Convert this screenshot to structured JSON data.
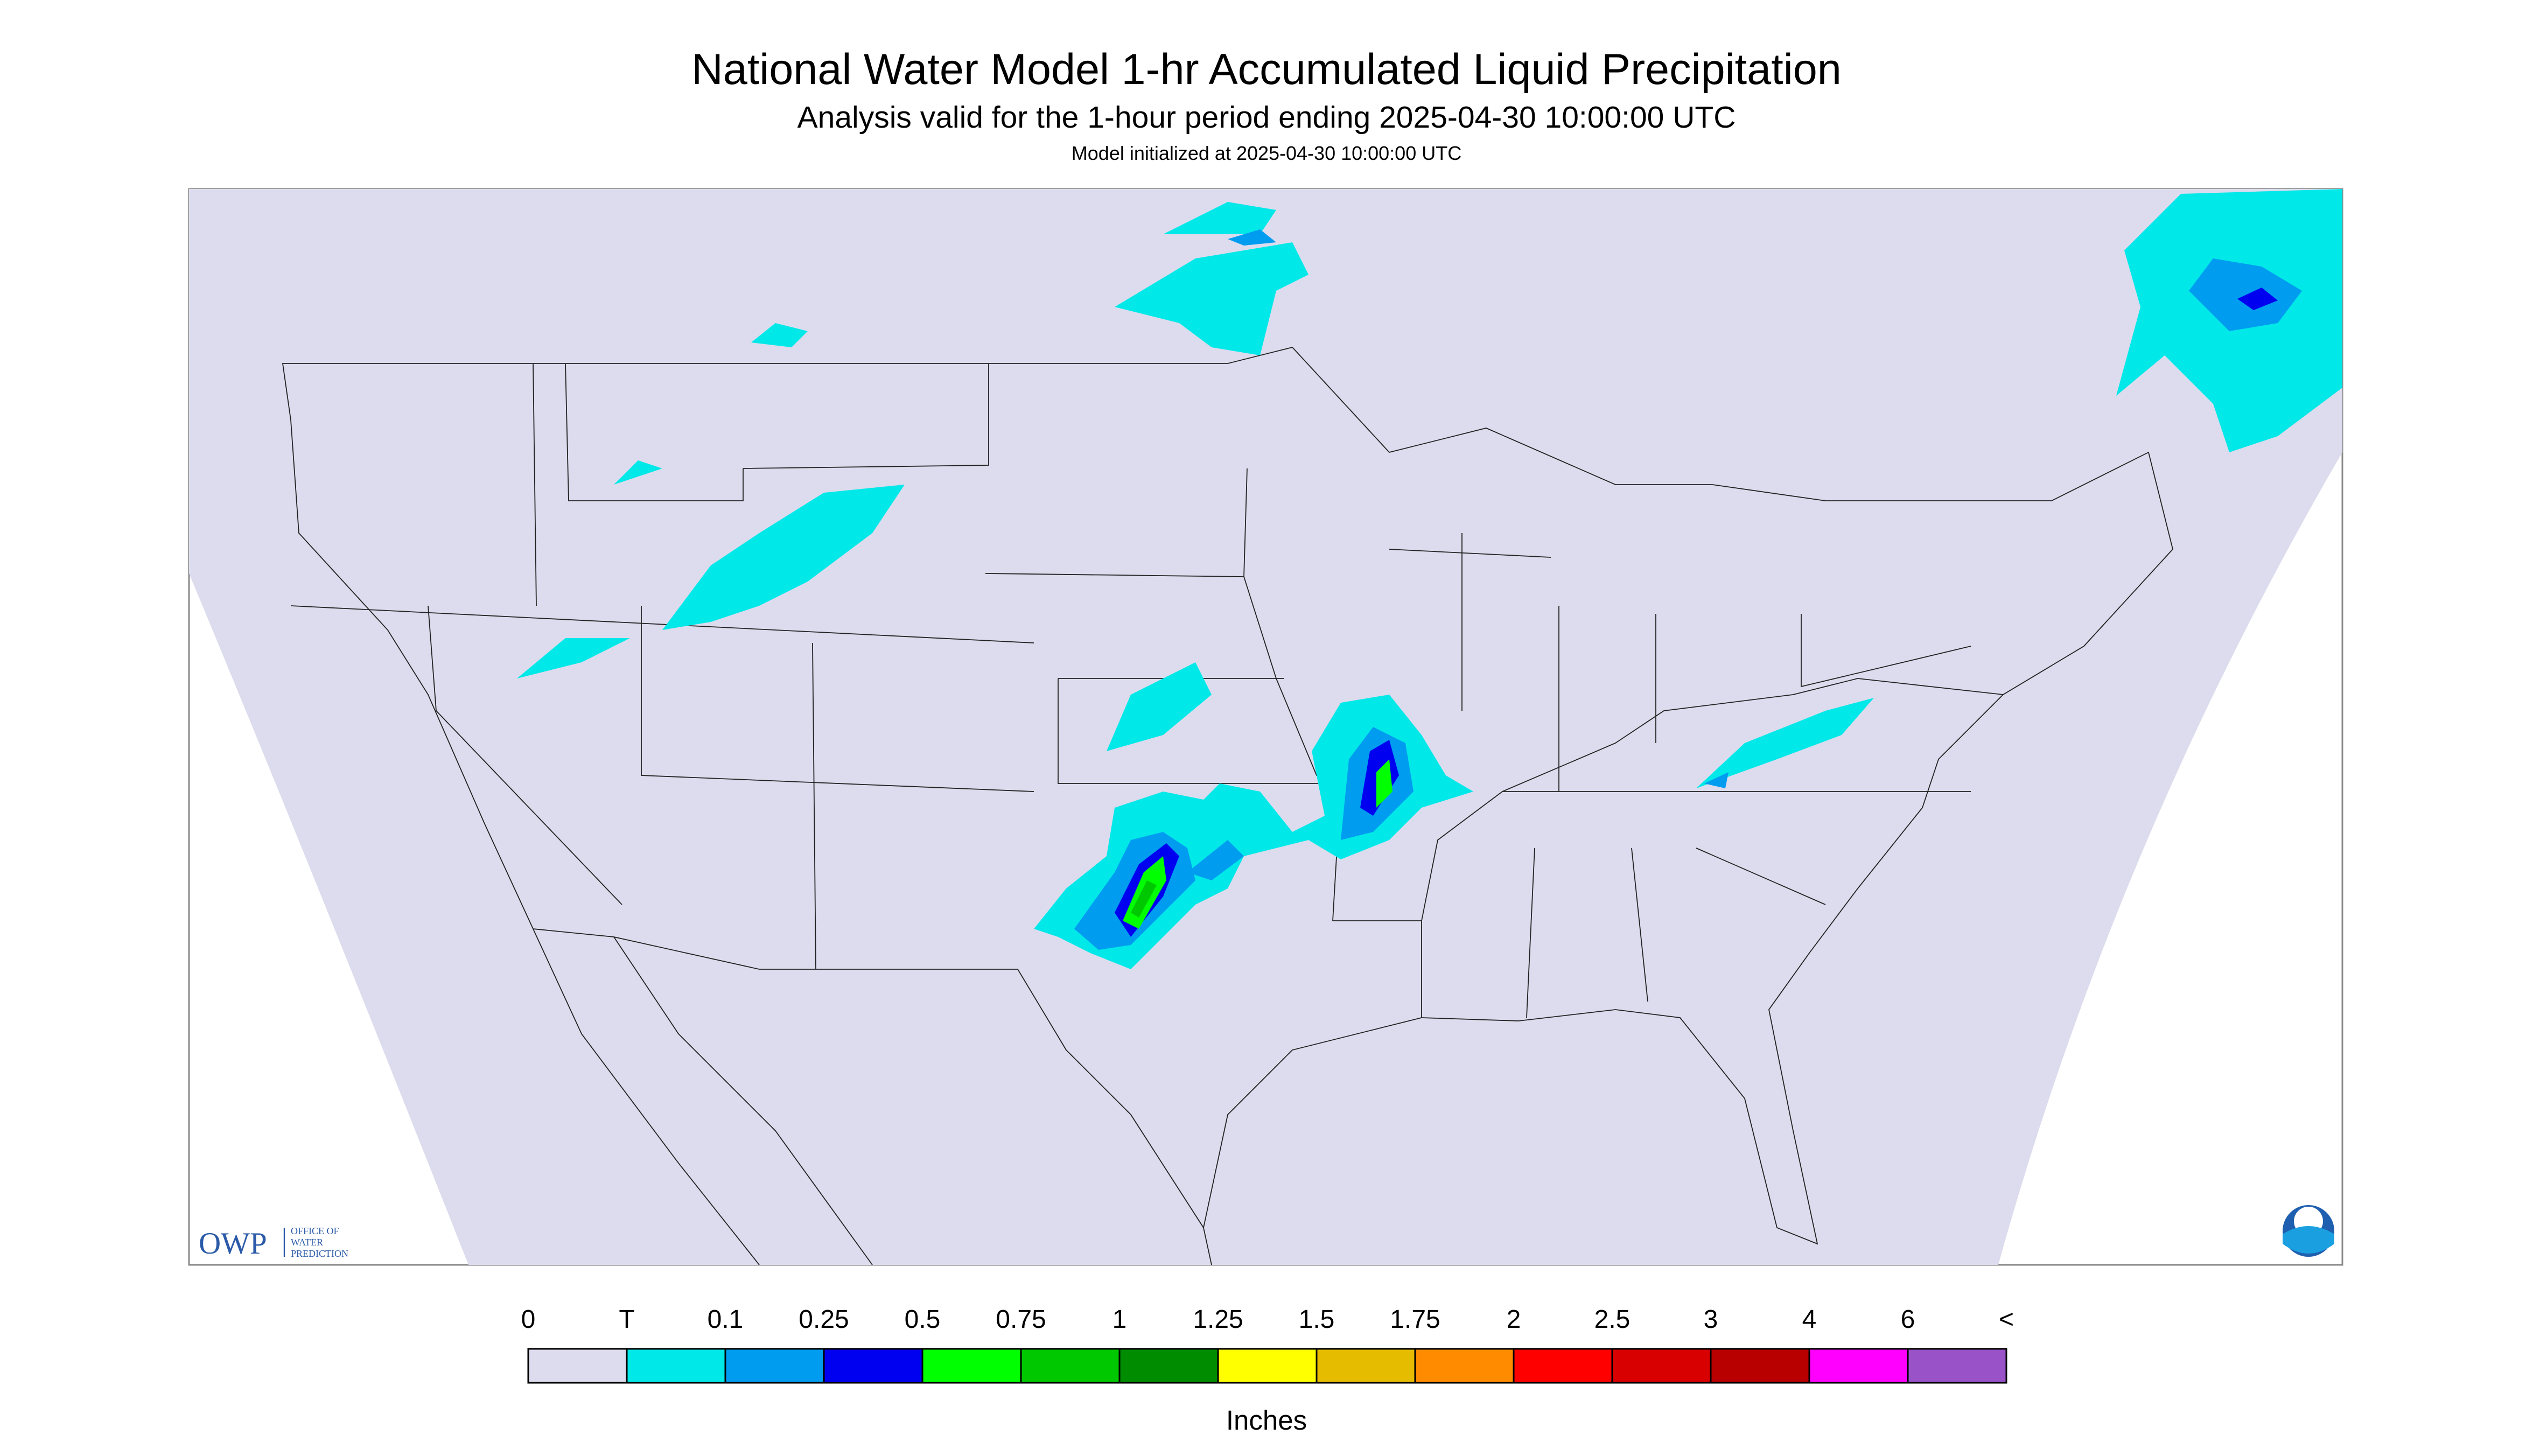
{
  "header": {
    "title": "National Water Model 1-hr Accumulated Liquid Precipitation",
    "subtitle": "Analysis valid for the 1-hour period ending 2025-04-30 10:00:00 UTC",
    "init": "Model initialized at 2025-04-30 10:00:00 UTC"
  },
  "logo": {
    "name": "OWP",
    "lines": [
      "OFFICE OF",
      "WATER",
      "PREDICTION"
    ]
  },
  "legend": {
    "labels": [
      "0",
      "T",
      "0.1",
      "0.25",
      "0.5",
      "0.75",
      "1",
      "1.25",
      "1.5",
      "1.75",
      "2",
      "2.5",
      "3",
      "4",
      "6",
      "<"
    ],
    "colors": [
      "#dcdcee",
      "#00e8e8",
      "#009cf0",
      "#0000f0",
      "#00ff00",
      "#00c800",
      "#008c00",
      "#ffff00",
      "#e6bc00",
      "#ff8c00",
      "#ff0000",
      "#d80000",
      "#b80000",
      "#ff00ff",
      "#9a52c8"
    ],
    "unit": "Inches"
  }
}
